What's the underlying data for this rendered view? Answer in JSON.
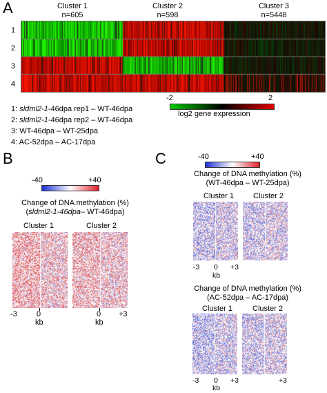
{
  "panel_a": {
    "label": "A",
    "clusters": [
      {
        "name": "Cluster 1",
        "n": "n=605"
      },
      {
        "name": "Cluster 2",
        "n": "n=598"
      },
      {
        "name": "Cluster 3",
        "n": "n=5448"
      }
    ],
    "row_labels": [
      "1",
      "2",
      "3",
      "4"
    ],
    "colorbar": {
      "min": "-2",
      "max": "2",
      "label": "log2 gene expression",
      "colors": [
        "#00c800",
        "#000000",
        "#e60000"
      ]
    },
    "legend": [
      {
        "num": "1: ",
        "italic": "sldml2-1",
        "rest": "-46dpa rep1 – WT-46dpa"
      },
      {
        "num": "2: ",
        "italic": "sldml2-1",
        "rest": "-46dpa rep2 – WT-46dpa"
      },
      {
        "num": "",
        "italic": "",
        "rest": "3: WT-46dpa – WT-25dpa"
      },
      {
        "num": "",
        "italic": "",
        "rest": "4: AC-52dpa – AC-17dpa"
      }
    ]
  },
  "panel_b": {
    "label": "B",
    "colorbar": {
      "min": "-40",
      "max": "+40",
      "colors": [
        "#1f2fd6",
        "#ffffff",
        "#e0202a"
      ]
    },
    "title_line1": "Change of DNA methylation (%)",
    "title_line2_italic": "sldml2-1-46dpa",
    "title_line2_rest": "– WT-46dpa)",
    "cluster_labels": [
      "Cluster 1",
      "Cluster 2"
    ],
    "x_ticks": [
      "-3",
      "0",
      "+3"
    ],
    "x_unit": "kb"
  },
  "panel_c": {
    "label": "C",
    "colorbar": {
      "min": "-40",
      "max": "+40",
      "colors": [
        "#1f2fd6",
        "#ffffff",
        "#e0202a"
      ]
    },
    "top": {
      "title_line1": "Change of DNA methylation (%)",
      "title_line2": "(WT-46dpa – WT-25dpa)",
      "cluster_labels": [
        "Cluster 1",
        "Cluster 2"
      ],
      "x_ticks": [
        "-3",
        "0",
        "+3"
      ],
      "x_unit": "kb"
    },
    "bottom": {
      "title_line1": "Change of DNA methylation (%)",
      "title_line2": "(AC-52dpa – AC-17dpa)",
      "cluster_labels": [
        "Cluster 1",
        "Cluster 2"
      ],
      "x_ticks": [
        "-3",
        "0",
        "+3"
      ],
      "x_unit": "kb"
    }
  }
}
